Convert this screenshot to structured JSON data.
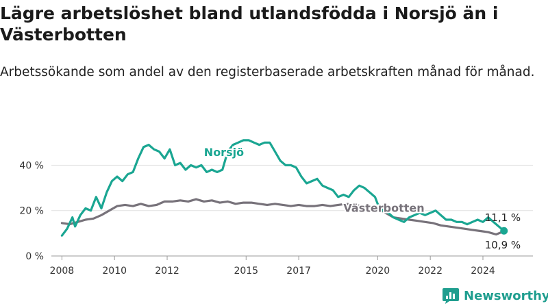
{
  "header": {
    "title": "Lägre arbetslöshet bland utlandsfödda i Norsjö än i Västerbotten",
    "subtitle": "Arbetssökande som andel av den registerbaserade arbetskraften månad för månad."
  },
  "brand": {
    "name": "Newsworthy",
    "icon": "bar-chart-icon",
    "color": "#1f9e8f"
  },
  "chart_data": {
    "type": "line",
    "title": "Lägre arbetslöshet bland utlandsfödda i Norsjö än i Västerbotten",
    "subtitle": "Arbetssökande som andel av den registerbaserade arbetskraften månad för månad.",
    "xlabel": "",
    "ylabel": "",
    "x_ticks": [
      "2008",
      "2010",
      "2012",
      "2015",
      "2017",
      "2020",
      "2022",
      "2024"
    ],
    "y_ticks": [
      "0 %",
      "20 %",
      "40 %"
    ],
    "xlim": [
      2007.6,
      2025.9
    ],
    "ylim": [
      0,
      54
    ],
    "grid": true,
    "series": [
      {
        "name": "Norsjö",
        "color": "#1aa692",
        "points": [
          [
            2008.0,
            9
          ],
          [
            2008.2,
            12
          ],
          [
            2008.4,
            17
          ],
          [
            2008.5,
            13
          ],
          [
            2008.7,
            18
          ],
          [
            2008.9,
            21
          ],
          [
            2009.1,
            20
          ],
          [
            2009.3,
            26
          ],
          [
            2009.5,
            21
          ],
          [
            2009.7,
            28
          ],
          [
            2009.9,
            33
          ],
          [
            2010.1,
            35
          ],
          [
            2010.3,
            33
          ],
          [
            2010.5,
            36
          ],
          [
            2010.7,
            37
          ],
          [
            2010.9,
            43
          ],
          [
            2011.1,
            48
          ],
          [
            2011.3,
            49
          ],
          [
            2011.5,
            47
          ],
          [
            2011.7,
            46
          ],
          [
            2011.9,
            43
          ],
          [
            2012.1,
            47
          ],
          [
            2012.3,
            40
          ],
          [
            2012.5,
            41
          ],
          [
            2012.7,
            38
          ],
          [
            2012.9,
            40
          ],
          [
            2013.1,
            39
          ],
          [
            2013.3,
            40
          ],
          [
            2013.5,
            37
          ],
          [
            2013.7,
            38
          ],
          [
            2013.9,
            37
          ],
          [
            2014.1,
            38
          ],
          [
            2014.3,
            46
          ],
          [
            2014.5,
            49
          ],
          [
            2014.7,
            50
          ],
          [
            2014.9,
            51
          ],
          [
            2015.1,
            51
          ],
          [
            2015.3,
            50
          ],
          [
            2015.5,
            49
          ],
          [
            2015.7,
            50
          ],
          [
            2015.9,
            50
          ],
          [
            2016.1,
            46
          ],
          [
            2016.3,
            42
          ],
          [
            2016.5,
            40
          ],
          [
            2016.7,
            40
          ],
          [
            2016.9,
            39
          ],
          [
            2017.1,
            35
          ],
          [
            2017.3,
            32
          ],
          [
            2017.5,
            33
          ],
          [
            2017.7,
            34
          ],
          [
            2017.9,
            31
          ],
          [
            2018.1,
            30
          ],
          [
            2018.3,
            29
          ],
          [
            2018.5,
            26
          ],
          [
            2018.7,
            27
          ],
          [
            2018.9,
            26
          ],
          [
            2019.1,
            29
          ],
          [
            2019.3,
            31
          ],
          [
            2019.5,
            30
          ],
          [
            2019.7,
            28
          ],
          [
            2019.9,
            26
          ],
          [
            2020.0,
            23
          ],
          [
            2020.2,
            20
          ],
          [
            2020.4,
            19
          ],
          [
            2020.6,
            17
          ],
          [
            2020.8,
            16
          ],
          [
            2021.0,
            15
          ],
          [
            2021.2,
            17
          ],
          [
            2021.4,
            18
          ],
          [
            2021.6,
            19
          ],
          [
            2021.8,
            18
          ],
          [
            2022.0,
            19
          ],
          [
            2022.2,
            20
          ],
          [
            2022.4,
            18
          ],
          [
            2022.6,
            16
          ],
          [
            2022.8,
            16
          ],
          [
            2023.0,
            15
          ],
          [
            2023.2,
            15
          ],
          [
            2023.4,
            14
          ],
          [
            2023.6,
            15
          ],
          [
            2023.8,
            16
          ],
          [
            2024.0,
            15
          ],
          [
            2024.2,
            17
          ],
          [
            2024.4,
            15
          ],
          [
            2024.6,
            13
          ],
          [
            2024.8,
            11.1
          ]
        ]
      },
      {
        "name": "Västerbotten",
        "color": "#77727a",
        "points": [
          [
            2008.0,
            14.5
          ],
          [
            2008.3,
            14
          ],
          [
            2008.6,
            15
          ],
          [
            2008.9,
            16
          ],
          [
            2009.2,
            16.5
          ],
          [
            2009.5,
            18
          ],
          [
            2009.8,
            20
          ],
          [
            2010.1,
            22
          ],
          [
            2010.4,
            22.5
          ],
          [
            2010.7,
            22
          ],
          [
            2011.0,
            23
          ],
          [
            2011.3,
            22
          ],
          [
            2011.6,
            22.5
          ],
          [
            2011.9,
            24
          ],
          [
            2012.2,
            24
          ],
          [
            2012.5,
            24.5
          ],
          [
            2012.8,
            24
          ],
          [
            2013.1,
            25
          ],
          [
            2013.4,
            24
          ],
          [
            2013.7,
            24.5
          ],
          [
            2014.0,
            23.5
          ],
          [
            2014.3,
            24
          ],
          [
            2014.6,
            23
          ],
          [
            2014.9,
            23.5
          ],
          [
            2015.2,
            23.5
          ],
          [
            2015.5,
            23
          ],
          [
            2015.8,
            22.5
          ],
          [
            2016.1,
            23
          ],
          [
            2016.4,
            22.5
          ],
          [
            2016.7,
            22
          ],
          [
            2017.0,
            22.5
          ],
          [
            2017.3,
            22
          ],
          [
            2017.6,
            22
          ],
          [
            2017.9,
            22.5
          ],
          [
            2018.2,
            22
          ],
          [
            2018.5,
            22.5
          ],
          [
            2018.8,
            23
          ],
          [
            2019.1,
            22.5
          ],
          [
            2019.4,
            22
          ],
          [
            2019.7,
            21.5
          ],
          [
            2020.0,
            21
          ],
          [
            2020.3,
            19
          ],
          [
            2020.6,
            17
          ],
          [
            2020.9,
            16.5
          ],
          [
            2021.2,
            16
          ],
          [
            2021.5,
            15.5
          ],
          [
            2021.8,
            15
          ],
          [
            2022.1,
            14.5
          ],
          [
            2022.4,
            13.5
          ],
          [
            2022.7,
            13
          ],
          [
            2023.0,
            12.5
          ],
          [
            2023.3,
            12
          ],
          [
            2023.6,
            11.5
          ],
          [
            2023.9,
            11
          ],
          [
            2024.2,
            10.5
          ],
          [
            2024.5,
            9.5
          ],
          [
            2024.8,
            10.9
          ]
        ]
      }
    ],
    "annotations": [
      {
        "text": "Norsjö",
        "series": "Norsjö",
        "x": 2013.4,
        "y": 44
      },
      {
        "text": "Västerbotten",
        "series": "Västerbotten",
        "x": 2018.7,
        "y": 19.5
      },
      {
        "text": "11,1 %",
        "series": "Norsjö",
        "x": 2024.8,
        "y": 11.1,
        "position": "above"
      },
      {
        "text": "10,9 %",
        "series": "Västerbotten",
        "x": 2024.8,
        "y": 10.9,
        "position": "below"
      }
    ]
  }
}
